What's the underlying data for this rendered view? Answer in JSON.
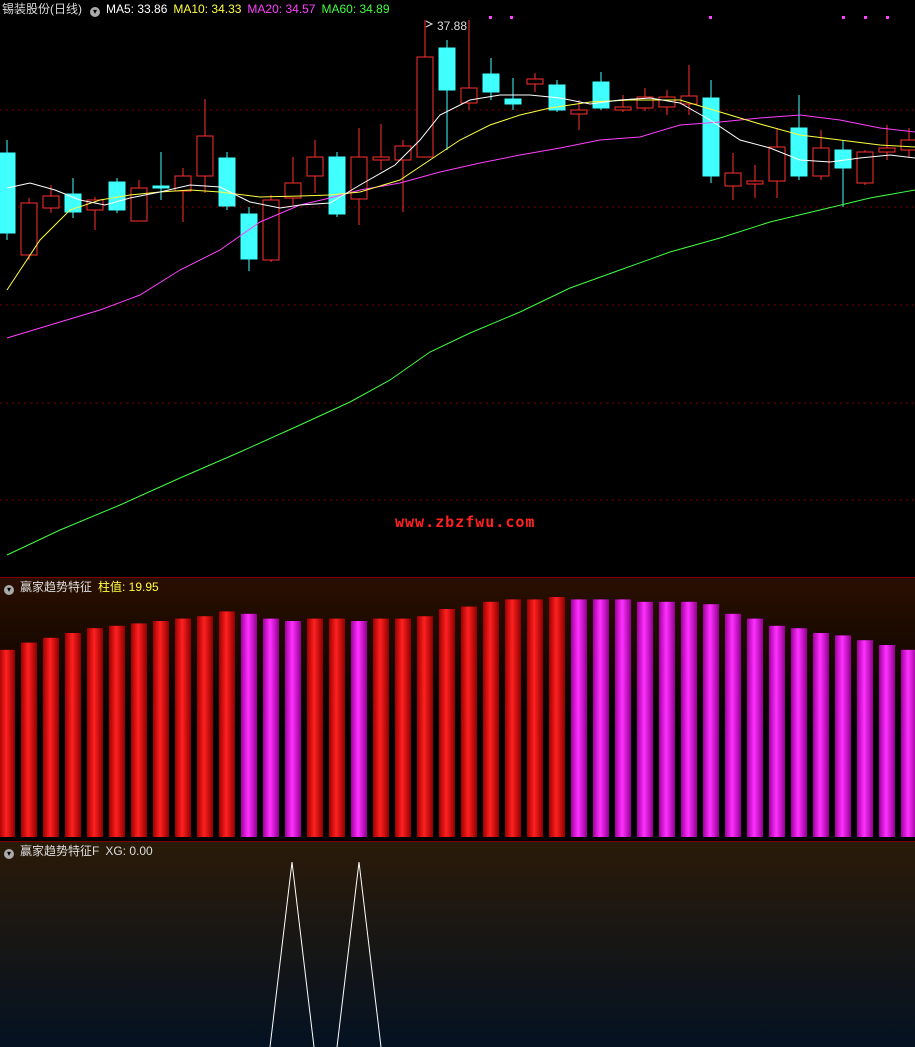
{
  "price_panel": {
    "title": "锡装股份(日线)",
    "ma5_label": "MA5: 33.86",
    "ma10_label": "MA10: 34.33",
    "ma20_label": "MA20: 34.57",
    "ma60_label": "MA60: 34.89",
    "high_marker": "37.88",
    "watermark": "www.zbzfwu.com",
    "colors": {
      "up": "#ff3030",
      "down": "#40ffff",
      "ma5": "#ffffff",
      "ma10": "#ffff40",
      "ma20": "#ff40ff",
      "ma60": "#40ff40"
    }
  },
  "indicator_panel": {
    "title": "赢家趋势特征",
    "value_label": "柱值: 19.95",
    "bar_values": [
      0.78,
      0.81,
      0.83,
      0.85,
      0.87,
      0.88,
      0.89,
      0.9,
      0.91,
      0.92,
      0.94,
      0.93,
      0.91,
      0.9,
      0.91,
      0.91,
      0.9,
      0.91,
      0.91,
      0.92,
      0.95,
      0.96,
      0.98,
      0.99,
      0.99,
      1.0,
      0.99,
      0.99,
      0.99,
      0.98,
      0.98,
      0.98,
      0.97,
      0.93,
      0.91,
      0.88,
      0.87,
      0.85,
      0.84,
      0.82,
      0.8,
      0.78
    ],
    "bar_colors": [
      "red",
      "red",
      "red",
      "red",
      "red",
      "red",
      "red",
      "red",
      "red",
      "red",
      "red",
      "magenta",
      "magenta",
      "magenta",
      "red",
      "red",
      "magenta",
      "red",
      "red",
      "red",
      "red",
      "red",
      "red",
      "red",
      "red",
      "red",
      "magenta",
      "magenta",
      "magenta",
      "magenta",
      "magenta",
      "magenta",
      "magenta",
      "magenta",
      "magenta",
      "magenta",
      "magenta",
      "magenta",
      "magenta",
      "magenta",
      "magenta",
      "magenta"
    ]
  },
  "xg_panel": {
    "title": "赢家趋势特征F",
    "value_label": "XG: 0.00"
  }
}
